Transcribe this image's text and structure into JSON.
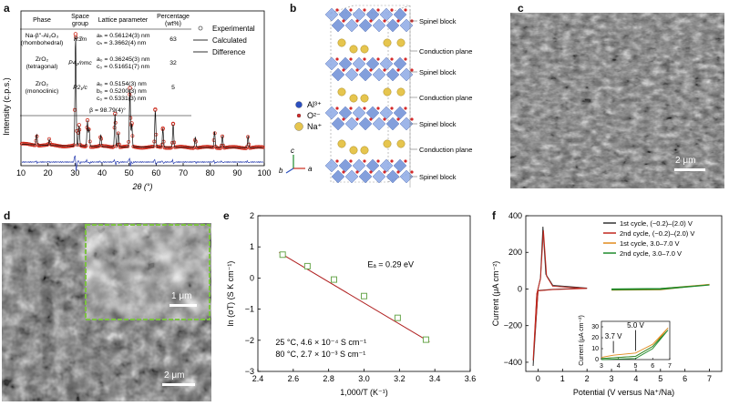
{
  "panels": {
    "a": {
      "label": "a",
      "table": {
        "headers": [
          "Phase",
          "Space group",
          "Lattice parameter",
          "Percentage (wt%)"
        ],
        "rows": [
          {
            "phase": "Na-β''-Al₂O₃",
            "phase2": "(rhombohedral)",
            "group": "R3̄m",
            "params": [
              "aₕ = 0.56124(3) nm",
              "cₕ = 3.3662(4) nm"
            ],
            "pct": "63"
          },
          {
            "phase": "ZrO₂",
            "phase2": "(tetragonal)",
            "group": "P4₂/nmc",
            "params": [
              "a₀ = 0.36245(3) nm",
              "c₀ = 0.51651(7) nm"
            ],
            "pct": "32"
          },
          {
            "phase": "ZrO₂",
            "phase2": "(monoclinic)",
            "group": "P2₁/c",
            "params": [
              "a₀ = 0.5154(3) nm",
              "b₀ = 0.5200(3) nm",
              "c₀ = 0.5331(3) nm"
            ],
            "pct": "5"
          }
        ],
        "beta": "β = 98.79(4)°"
      },
      "legend": [
        "Experimental",
        "Calculated",
        "Difference"
      ]
    },
    "b": {
      "label": "b",
      "blocks": [
        "Spinel block",
        "Conduction plane",
        "Spinel block",
        "Conduction plane",
        "Spinel block",
        "Conduction plane",
        "Spinel block"
      ],
      "ions": [
        "Al³⁺",
        "O²⁻",
        "Na⁺"
      ],
      "axes": [
        "b",
        "c",
        "a"
      ]
    },
    "c": {
      "label": "c",
      "scale": "2 μm"
    },
    "d": {
      "label": "d",
      "scale": "2 μm",
      "inset_scale": "1 μm"
    },
    "e": {
      "label": "e"
    },
    "f": {
      "label": "f"
    }
  },
  "chart_data": [
    {
      "id": "a",
      "type": "line",
      "title": "",
      "xlabel": "2θ (°)",
      "ylabel": "Intensity (c.p.s.)",
      "xlim": [
        10,
        100
      ],
      "xticks": [
        10,
        20,
        30,
        40,
        50,
        60,
        70,
        80,
        90,
        100
      ],
      "series": [
        {
          "name": "Experimental",
          "color": "#cc2a1c"
        },
        {
          "name": "Calculated",
          "color": "#111111"
        },
        {
          "name": "Difference",
          "color": "#2a3fb0"
        }
      ],
      "peaks": [
        {
          "x": 15.8,
          "h": 0.09
        },
        {
          "x": 20.5,
          "h": 0.05
        },
        {
          "x": 30.2,
          "h": 0.95
        },
        {
          "x": 31.5,
          "h": 0.18
        },
        {
          "x": 34.6,
          "h": 0.22
        },
        {
          "x": 35.2,
          "h": 0.15
        },
        {
          "x": 39.5,
          "h": 0.1
        },
        {
          "x": 44.8,
          "h": 0.28
        },
        {
          "x": 46.0,
          "h": 0.12
        },
        {
          "x": 50.3,
          "h": 0.5
        },
        {
          "x": 51.0,
          "h": 0.2
        },
        {
          "x": 59.7,
          "h": 0.32
        },
        {
          "x": 62.5,
          "h": 0.16
        },
        {
          "x": 66.3,
          "h": 0.2
        },
        {
          "x": 74.5,
          "h": 0.09
        },
        {
          "x": 81.6,
          "h": 0.14
        },
        {
          "x": 84.5,
          "h": 0.1
        },
        {
          "x": 94.0,
          "h": 0.1
        }
      ]
    },
    {
      "id": "e",
      "type": "scatter",
      "xlabel": "1,000/T (K⁻¹)",
      "ylabel": "ln (σT) (S K cm⁻¹)",
      "xlim": [
        2.4,
        3.6
      ],
      "ylim": [
        -3,
        2
      ],
      "xticks": [
        2.4,
        2.6,
        2.8,
        3.0,
        3.2,
        3.4,
        3.6
      ],
      "yticks": [
        -3,
        -2,
        -1,
        0,
        1,
        2
      ],
      "points": [
        [
          2.54,
          0.75
        ],
        [
          2.68,
          0.38
        ],
        [
          2.83,
          -0.05
        ],
        [
          3.0,
          -0.58
        ],
        [
          3.19,
          -1.28
        ],
        [
          3.35,
          -1.98
        ]
      ],
      "fit": [
        [
          2.52,
          0.82
        ],
        [
          3.37,
          -2.05
        ]
      ],
      "annotation": "Eₐ = 0.29 eV",
      "notes": [
        "25 °C, 4.6 × 10⁻⁴ S cm⁻¹",
        "80 °C, 2.7 × 10⁻³ S cm⁻¹"
      ]
    },
    {
      "id": "f",
      "type": "line",
      "xlabel": "Potential (V versus Na⁺/Na)",
      "ylabel": "Current (μA cm⁻²)",
      "xlim": [
        -0.5,
        7.5
      ],
      "ylim": [
        -450,
        400
      ],
      "xticks": [
        0,
        1,
        2,
        3,
        4,
        5,
        6,
        7
      ],
      "yticks": [
        -400,
        -200,
        0,
        200,
        400
      ],
      "legend": [
        {
          "name": "1st cycle, (−0.2)–(2.0) V",
          "color": "#333333"
        },
        {
          "name": "2nd cycle, (−0.2)–(2.0) V",
          "color": "#c0271e"
        },
        {
          "name": "1st cycle, 3.0–7.0 V",
          "color": "#e08a1e"
        },
        {
          "name": "2nd cycle, 3.0–7.0 V",
          "color": "#1f8a2c"
        }
      ],
      "inset": {
        "ylabel": "Current (μA cm⁻²)",
        "xlim": [
          3,
          7
        ],
        "ylim": [
          0,
          35
        ],
        "xticks": [
          3,
          4,
          5,
          6,
          7
        ],
        "yticks": [
          0,
          10,
          20,
          30
        ],
        "markers": [
          "3.7 V",
          "5.0 V"
        ]
      }
    }
  ]
}
